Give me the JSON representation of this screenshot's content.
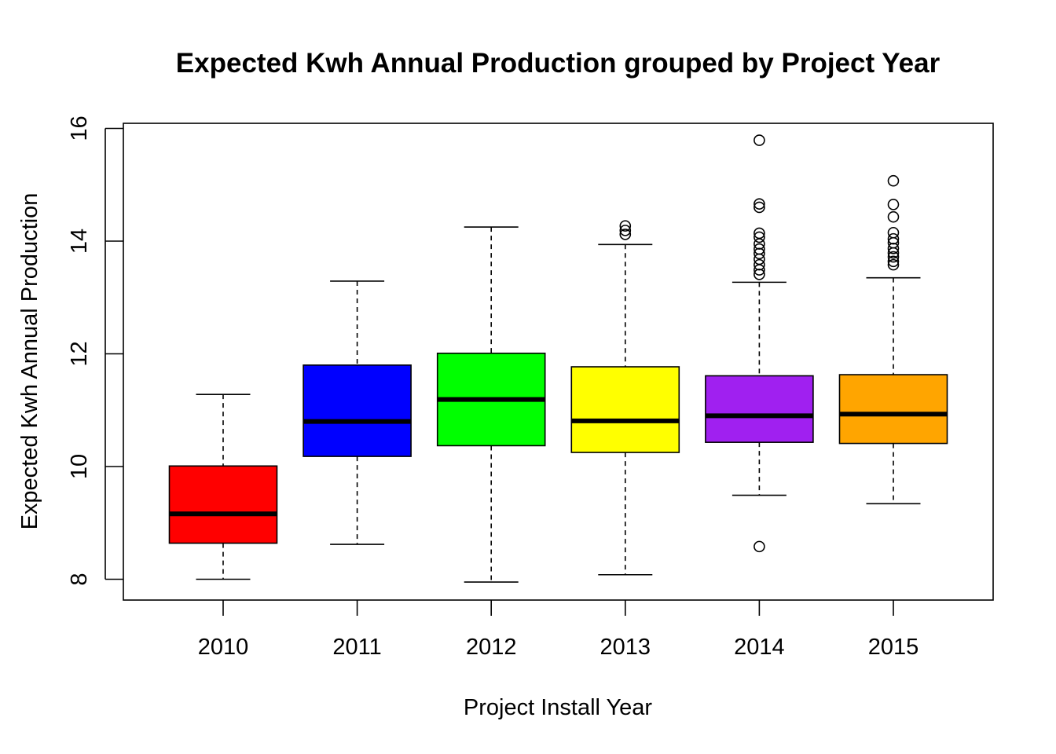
{
  "chart_data": {
    "type": "boxplot",
    "title": "Expected Kwh Annual Production grouped by Project Year",
    "xlabel": "Project Install Year",
    "ylabel": "Expected Kwh Annual Production",
    "ylim": [
      7.7,
      16.1
    ],
    "yticks": [
      8,
      10,
      12,
      14,
      16
    ],
    "grid": false,
    "legend": "none",
    "categories": [
      "2010",
      "2011",
      "2012",
      "2013",
      "2014",
      "2015"
    ],
    "boxes": [
      {
        "category": "2010",
        "color": "#ff0000",
        "whisker_low": 8.0,
        "q1": 8.64,
        "median": 9.16,
        "q3": 10.01,
        "whisker_high": 11.28,
        "outliers": []
      },
      {
        "category": "2011",
        "color": "#0000ff",
        "whisker_low": 8.62,
        "q1": 10.18,
        "median": 10.8,
        "q3": 11.8,
        "whisker_high": 13.29,
        "outliers": []
      },
      {
        "category": "2012",
        "color": "#00ff00",
        "whisker_low": 7.95,
        "q1": 10.37,
        "median": 11.19,
        "q3": 12.01,
        "whisker_high": 14.25,
        "outliers": []
      },
      {
        "category": "2013",
        "color": "#ffff00",
        "whisker_low": 8.08,
        "q1": 10.25,
        "median": 10.81,
        "q3": 11.77,
        "whisker_high": 13.94,
        "outliers": [
          14.12,
          14.19,
          14.27
        ]
      },
      {
        "category": "2014",
        "color": "#a020f0",
        "whisker_low": 9.49,
        "q1": 10.43,
        "median": 10.9,
        "q3": 11.61,
        "whisker_high": 13.27,
        "outliers": [
          8.58,
          13.41,
          13.49,
          13.58,
          13.68,
          13.78,
          13.86,
          13.95,
          14.07,
          14.14,
          14.6,
          14.66,
          15.79
        ]
      },
      {
        "category": "2015",
        "color": "#ffa500",
        "whisker_low": 9.34,
        "q1": 10.41,
        "median": 10.93,
        "q3": 11.63,
        "whisker_high": 13.35,
        "outliers": [
          13.58,
          13.64,
          13.72,
          13.79,
          13.87,
          13.97,
          14.04,
          14.15,
          14.43,
          14.65,
          15.07
        ]
      }
    ]
  }
}
